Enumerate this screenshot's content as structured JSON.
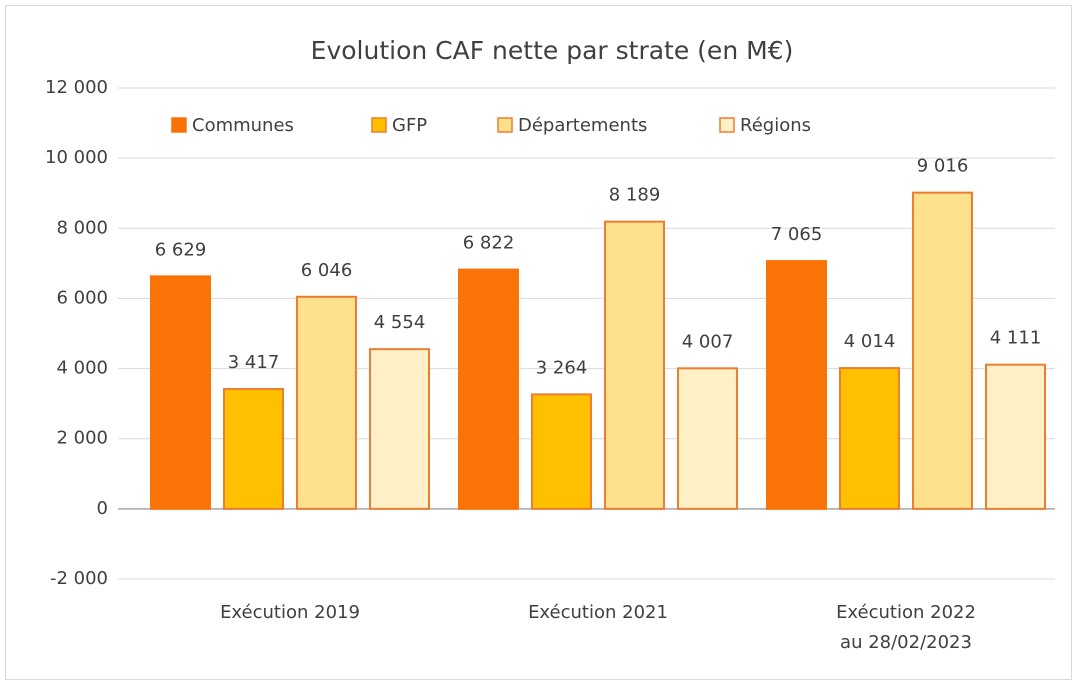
{
  "chart_data": {
    "type": "bar",
    "title": "Evolution CAF nette par strate (en M€)",
    "categories": [
      "Exécution 2019",
      "Exécution 2021",
      "Exécution 2022\nau 28/02/2023"
    ],
    "series": [
      {
        "name": "Communes",
        "color": "#f97306",
        "edgecolor": "#f97306",
        "values": [
          6629,
          6822,
          7065
        ],
        "value_labels": [
          "6 629",
          "6 822",
          "7 065"
        ]
      },
      {
        "name": "GFP",
        "color": "#ffc000",
        "edgecolor": "#ed7d31",
        "values": [
          3417,
          3264,
          4014
        ],
        "value_labels": [
          "3 417",
          "3 264",
          "4 014"
        ]
      },
      {
        "name": "Départements",
        "color": "#ffe08c",
        "edgecolor": "#ed7d31",
        "values": [
          6046,
          8189,
          9016
        ],
        "value_labels": [
          "6 046",
          "8 189",
          "9 016"
        ]
      },
      {
        "name": "Régions",
        "color": "#fff0c8",
        "edgecolor": "#ed7d31",
        "values": [
          4554,
          4007,
          4111
        ],
        "value_labels": [
          "4 554",
          "4 007",
          "4 111"
        ]
      }
    ],
    "ylim": [
      -2000,
      12000
    ],
    "yticks": [
      {
        "value": -2000,
        "label": "-2 000"
      },
      0,
      {
        "value": 2000,
        "label": "2 000"
      },
      {
        "value": 4000,
        "label": "4 000"
      },
      {
        "value": 6000,
        "label": "6 000"
      },
      {
        "value": 8000,
        "label": "8 000"
      },
      {
        "value": 10000,
        "label": "10 000"
      },
      {
        "value": 12000,
        "label": "12 000"
      }
    ],
    "grid": true,
    "legend": "top"
  }
}
